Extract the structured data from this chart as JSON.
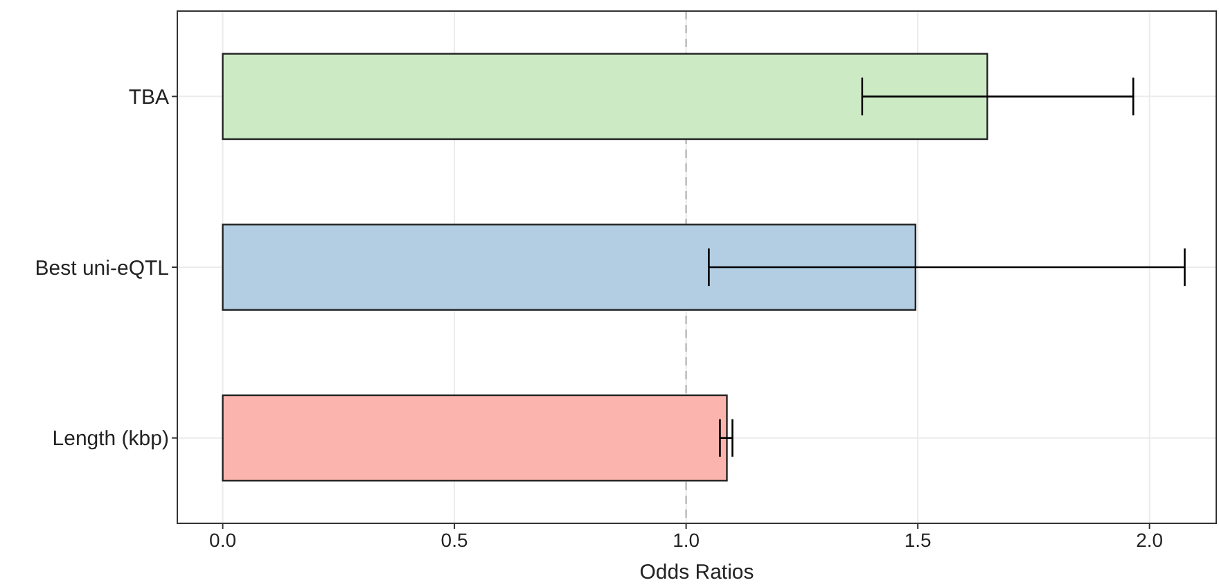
{
  "chart_data": {
    "type": "bar",
    "orientation": "horizontal",
    "xlabel": "Odds Ratios",
    "categories": [
      "TBA",
      "Best uni-eQTL",
      "Length (kbp)"
    ],
    "values": [
      1.65,
      1.495,
      1.088
    ],
    "colors": [
      "#ccebc5",
      "#b3cde3",
      "#fbb4ae"
    ],
    "errors": [
      [
        1.38,
        1.965
      ],
      [
        1.049,
        2.076
      ],
      [
        1.073,
        1.1
      ]
    ],
    "xlim": [
      -0.098,
      2.144
    ],
    "xticks": [
      {
        "value": 0,
        "label": "0.0"
      },
      0.5,
      {
        "value": 1,
        "label": "1.0"
      },
      1.5,
      {
        "value": 2,
        "label": "2.0"
      }
    ],
    "grid": true,
    "ref_lines": [
      {
        "axis": "x",
        "value": 1,
        "color": "#bbbbbb",
        "line_style": "dashed"
      }
    ]
  }
}
